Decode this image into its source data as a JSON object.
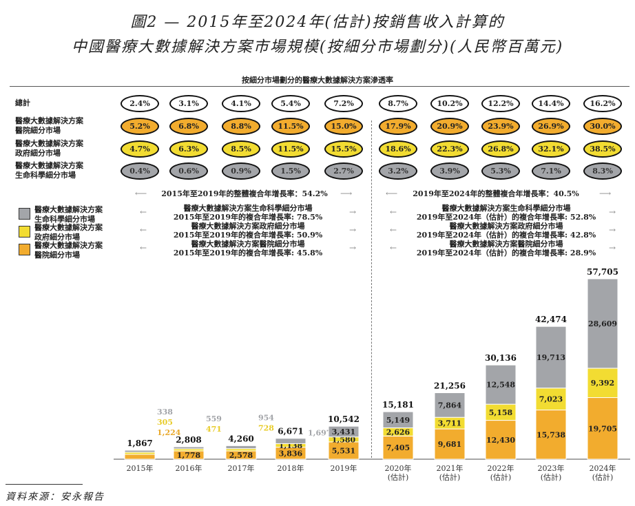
{
  "title_line1": "圖2 — 2015年至2024年(估計)按銷售收入計算的",
  "title_line2": "中國醫療大數據解決方案市場規模(按細分市場劃分)(人民幣百萬元)",
  "penetration_header": "按細分市場劃分的醫療大數據解決方案滲透率",
  "penetration": {
    "rows": [
      {
        "label": [
          "總計"
        ],
        "style": "total",
        "values": [
          "2.4%",
          "3.1%",
          "4.1%",
          "5.4%",
          "7.2%",
          "8.7%",
          "10.2%",
          "12.2%",
          "14.4%",
          "16.2%"
        ]
      },
      {
        "label": [
          "醫療大數據解決方案",
          "醫院細分市場"
        ],
        "style": "hospital",
        "values": [
          "5.2%",
          "6.8%",
          "8.8%",
          "11.5%",
          "15.0%",
          "17.9%",
          "20.9%",
          "23.9%",
          "26.9%",
          "30.0%"
        ]
      },
      {
        "label": [
          "醫療大數據解決方案",
          "政府細分市場"
        ],
        "style": "government",
        "values": [
          "4.7%",
          "6.3%",
          "8.5%",
          "11.5%",
          "15.5%",
          "18.6%",
          "22.3%",
          "26.8%",
          "32.1%",
          "38.5%"
        ]
      },
      {
        "label": [
          "醫療大數據解決方案",
          "生命科學細分市場"
        ],
        "style": "life",
        "values": [
          "0.4%",
          "0.6%",
          "0.9%",
          "1.5%",
          "2.7%",
          "3.2%",
          "3.9%",
          "5.3%",
          "7.1%",
          "8.3%"
        ]
      }
    ]
  },
  "cagr": {
    "left_overall": "2015年至2019年的整體複合年增長率：54.2%",
    "right_overall": "2019年至2024年的整體複合年增長率：40.5%",
    "left": [
      [
        "醫療大數據解決方案生命科學細分市場",
        "2015年至2019年的複合年增長率: 78.5%"
      ],
      [
        "醫療大數據解決方案政府細分市場",
        "2015年至2019年的複合年增長率: 50.9%"
      ],
      [
        "醫療大數據解決方案醫院細分市場",
        "2015年至2019年的複合年增長率: 45.8%"
      ]
    ],
    "right": [
      [
        "醫療大數據解決方案生命科學細分市場",
        "2019年至2024年（估計）的複合年增長率: 52.8%"
      ],
      [
        "醫療大數據解決方案政府細分市場",
        "2019年至2024年（估計）的複合年增長率: 42.8%"
      ],
      [
        "醫療大數據解決方案醫院細分市場",
        "2019年至2024年（估計）的複合年增長率: 28.9%"
      ]
    ]
  },
  "source": "資料來源：安永報告",
  "colors": {
    "hospital": "#F2AC2E",
    "government": "#F2DC32",
    "life": "#A3A5A9"
  },
  "chart_data": {
    "type": "bar",
    "stacked": true,
    "categories": [
      [
        "2015年"
      ],
      [
        "2016年"
      ],
      [
        "2017年"
      ],
      [
        "2018年"
      ],
      [
        "2019年"
      ],
      [
        "2020年",
        "(估計)"
      ],
      [
        "2021年",
        "(估計)"
      ],
      [
        "2022年",
        "(估計)"
      ],
      [
        "2023年",
        "(估計)"
      ],
      [
        "2024年",
        "(估計)"
      ]
    ],
    "series": [
      {
        "name": "醫療大數據解決方案醫院細分市場",
        "short": [
          "醫療大數據解決方案",
          "醫院細分市場"
        ],
        "values": [
          1224,
          1778,
          2578,
          3836,
          5531,
          7405,
          9681,
          12430,
          15738,
          19705
        ]
      },
      {
        "name": "醫療大數據解決方案政府細分市場",
        "short": [
          "醫療大數據解決方案",
          "政府細分市場"
        ],
        "values": [
          305,
          471,
          728,
          1138,
          1580,
          2626,
          3711,
          5158,
          7023,
          9392
        ]
      },
      {
        "name": "醫療大數據解決方案生命科學細分市場",
        "short": [
          "醫療大數據解決方案",
          "生命科學細分市場"
        ],
        "values": [
          338,
          559,
          954,
          1697,
          3431,
          5149,
          7864,
          12548,
          19713,
          28609
        ]
      }
    ],
    "totals": [
      1867,
      2808,
      4260,
      6671,
      10542,
      15181,
      21256,
      30136,
      42474,
      57705
    ],
    "legend": "left",
    "grid": false
  }
}
